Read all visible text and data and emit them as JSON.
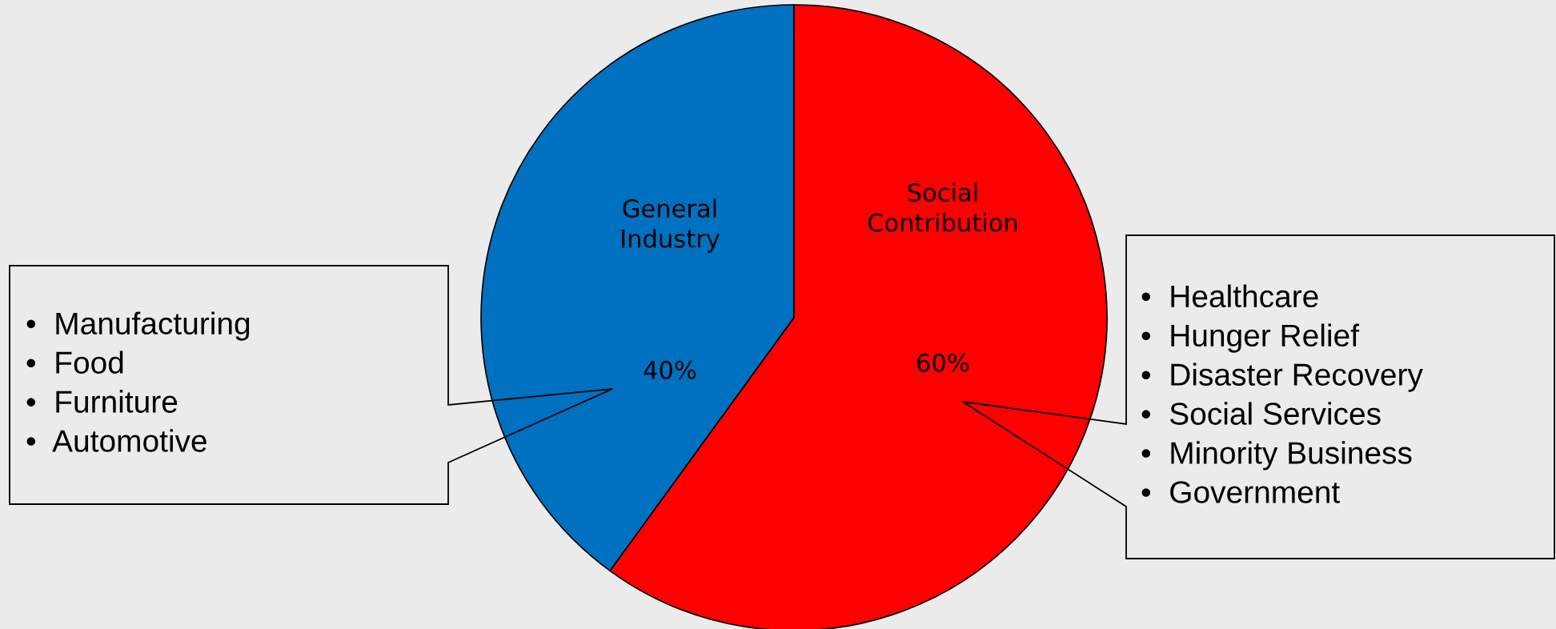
{
  "chart_data": {
    "type": "pie",
    "categories": [
      "General\nIndustry",
      "Social\nContribution"
    ],
    "values": [
      40,
      60
    ],
    "colors": [
      "#0070c0",
      "#ff0000"
    ],
    "value_labels": [
      "40%",
      "60%"
    ],
    "annotations": [
      "•  Manufacturing\n•  Food\n•  Furniture\n•  Automotive",
      "•  Healthcare\n•  Hunger Relief\n•  Disaster Recovery\n•  Social Services\n•  Minority Business\n•  Government"
    ]
  }
}
